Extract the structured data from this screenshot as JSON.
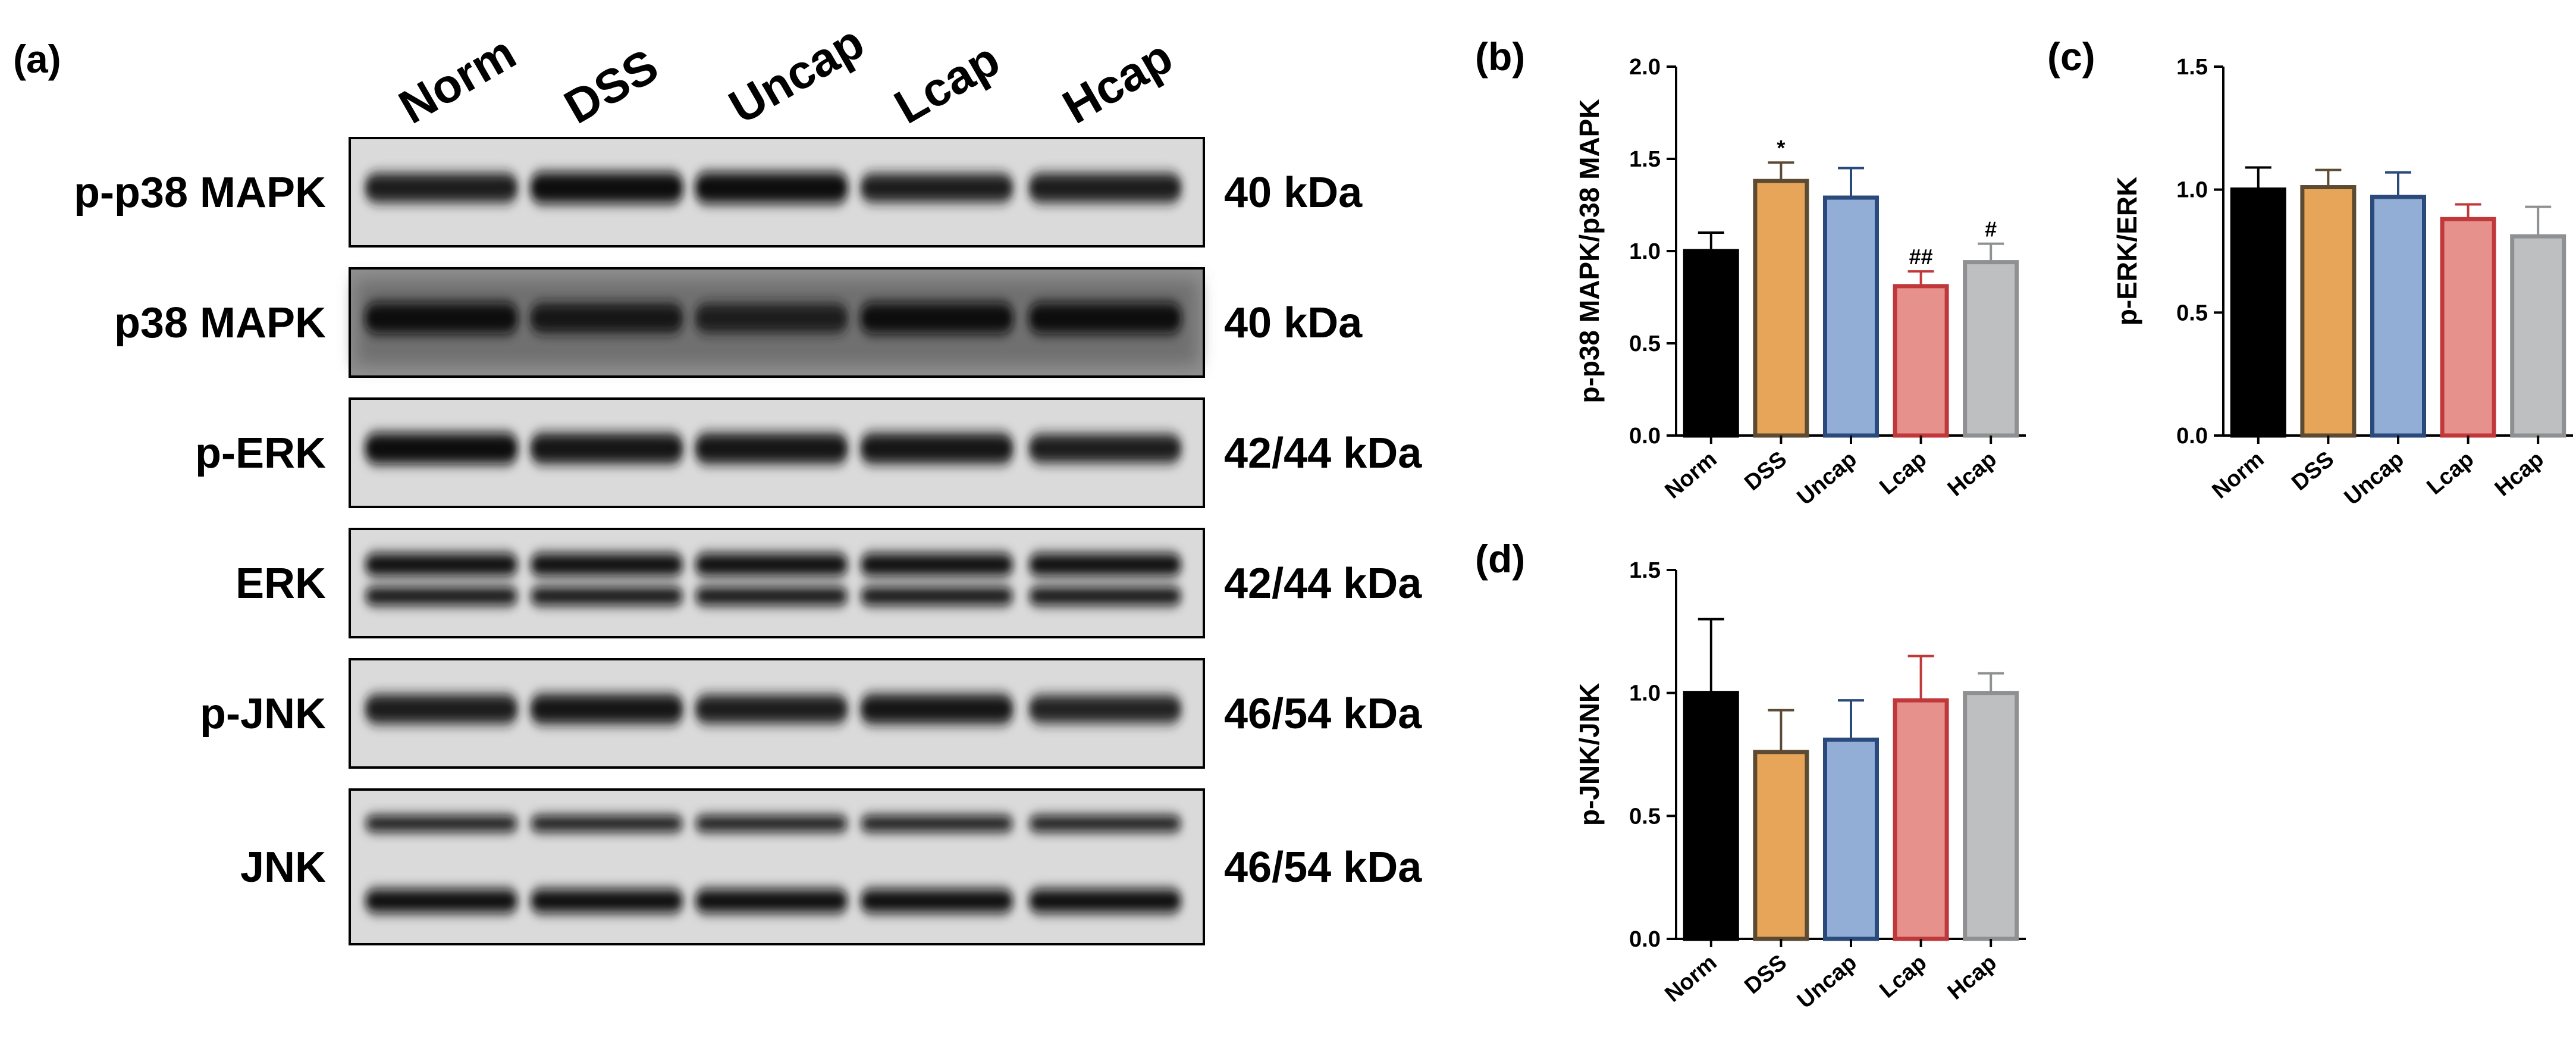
{
  "panel_labels": [
    "(a)",
    "(b)",
    "(c)",
    "(d)"
  ],
  "western_blot": {
    "lanes": [
      "Norm",
      "DSS",
      "Uncap",
      "Lcap",
      "Hcap"
    ],
    "rows": [
      {
        "protein": "p-p38 MAPK",
        "size": "40 kDa",
        "band_rel": [
          0.8,
          0.95,
          0.95,
          0.75,
          0.8
        ],
        "doublet": false
      },
      {
        "protein": "p38 MAPK",
        "size": "40 kDa",
        "band_rel": [
          0.95,
          0.85,
          0.8,
          0.95,
          0.95
        ],
        "doublet": false
      },
      {
        "protein": "p-ERK",
        "size": "42/44 kDa",
        "band_rel": [
          0.95,
          0.9,
          0.9,
          0.9,
          0.75
        ],
        "doublet": false
      },
      {
        "protein": "ERK",
        "size": "42/44 kDa",
        "band_rel": [
          1.0,
          1.0,
          1.0,
          1.0,
          1.0
        ],
        "doublet": true
      },
      {
        "protein": "p-JNK",
        "size": "46/54 kDa",
        "band_rel": [
          0.8,
          0.85,
          0.75,
          0.85,
          0.7
        ],
        "doublet": false
      },
      {
        "protein": "JNK",
        "size": "46/54 kDa",
        "band_rel": [
          0.95,
          0.95,
          0.95,
          0.95,
          0.95
        ],
        "doublet": true
      }
    ]
  },
  "colors": {
    "fills": [
      "#000000",
      "#E7A559",
      "#93AED6",
      "#E7918D",
      "#BDBFC1"
    ],
    "edges": [
      "#000000",
      "#5C4A33",
      "#2B4A7C",
      "#C0383A",
      "#8E9092"
    ]
  },
  "chart_data": [
    {
      "panel": "(b)",
      "type": "bar",
      "categories": [
        "Norm",
        "DSS",
        "Uncap",
        "Lcap",
        "Hcap"
      ],
      "values": [
        1.0,
        1.38,
        1.29,
        0.81,
        0.94
      ],
      "errors": [
        0.1,
        0.1,
        0.16,
        0.08,
        0.1
      ],
      "significance": [
        "",
        "*",
        "",
        "##",
        "#"
      ],
      "title": "",
      "xlabel": "",
      "ylabel": "p-p38 MAPK/p38 MAPK",
      "ylim": [
        0,
        2.0
      ],
      "yticks": [
        0.0,
        0.5,
        1.0,
        1.5,
        2.0
      ],
      "ytick_labels": [
        "0.0",
        "0.5",
        "1.0",
        "1.5",
        "2.0"
      ],
      "grid": false,
      "legend": "none"
    },
    {
      "panel": "(c)",
      "type": "bar",
      "categories": [
        "Norm",
        "DSS",
        "Uncap",
        "Lcap",
        "Hcap"
      ],
      "values": [
        1.0,
        1.01,
        0.97,
        0.88,
        0.81
      ],
      "errors": [
        0.09,
        0.07,
        0.1,
        0.06,
        0.12
      ],
      "significance": [
        "",
        "",
        "",
        "",
        ""
      ],
      "title": "",
      "xlabel": "",
      "ylabel": "p-ERK/ERK",
      "ylim": [
        0,
        1.5
      ],
      "yticks": [
        0.0,
        0.5,
        1.0,
        1.5
      ],
      "ytick_labels": [
        "0.0",
        "0.5",
        "1.0",
        "1.5"
      ],
      "grid": false,
      "legend": "none"
    },
    {
      "panel": "(d)",
      "type": "bar",
      "categories": [
        "Norm",
        "DSS",
        "Uncap",
        "Lcap",
        "Hcap"
      ],
      "values": [
        1.0,
        0.76,
        0.81,
        0.97,
        1.0
      ],
      "errors": [
        0.3,
        0.17,
        0.16,
        0.18,
        0.08
      ],
      "significance": [
        "",
        "",
        "",
        "",
        ""
      ],
      "title": "",
      "xlabel": "",
      "ylabel": "p-JNK/JNK",
      "ylim": [
        0,
        1.5
      ],
      "yticks": [
        0.0,
        0.5,
        1.0,
        1.5
      ],
      "ytick_labels": [
        "0.0",
        "0.5",
        "1.0",
        "1.5"
      ],
      "grid": false,
      "legend": "none"
    }
  ]
}
